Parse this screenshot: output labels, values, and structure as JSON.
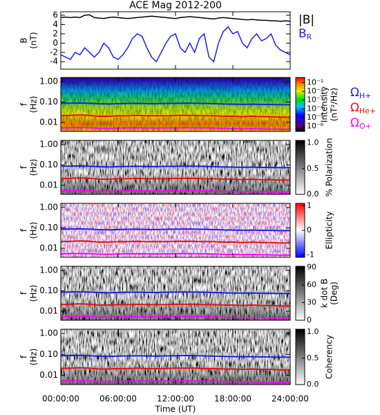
{
  "chart_data": {
    "title": "ACE Mag 2012-200",
    "xlabel": "Time (UT)",
    "xlim": [
      0,
      24
    ],
    "xticks": [
      {
        "value": 0,
        "label": "00:00:00"
      },
      {
        "value": 6,
        "label": "06:00:00"
      },
      {
        "value": 12,
        "label": "12:00:00"
      },
      {
        "value": 18,
        "label": "18:00:00"
      },
      {
        "value": 24,
        "label": "24:00:00"
      }
    ],
    "gyro": {
      "x": [
        0,
        1,
        2,
        3,
        4,
        5,
        6,
        7,
        8,
        9,
        10,
        11,
        12,
        13,
        14,
        15,
        16,
        17,
        18,
        19,
        20,
        21,
        22,
        23,
        24
      ],
      "series": [
        {
          "name": "Ω",
          "subscript": "H+",
          "color": "#1c1cf0",
          "values": [
            0.085,
            0.088,
            0.09,
            0.087,
            0.082,
            0.08,
            0.083,
            0.085,
            0.086,
            0.084,
            0.083,
            0.085,
            0.086,
            0.088,
            0.087,
            0.085,
            0.083,
            0.08,
            0.078,
            0.077,
            0.078,
            0.076,
            0.075,
            0.074,
            0.074
          ]
        },
        {
          "name": "Ω",
          "subscript": "He+",
          "color": "#e81010",
          "values": [
            0.021,
            0.022,
            0.023,
            0.022,
            0.02,
            0.02,
            0.021,
            0.021,
            0.022,
            0.021,
            0.021,
            0.021,
            0.022,
            0.022,
            0.022,
            0.021,
            0.021,
            0.02,
            0.02,
            0.019,
            0.02,
            0.019,
            0.019,
            0.018,
            0.018
          ]
        },
        {
          "name": "Ω",
          "subscript": "O+",
          "color": "#ff00ff",
          "values": [
            0.0053,
            0.0055,
            0.0056,
            0.0054,
            0.0051,
            0.005,
            0.0052,
            0.0053,
            0.0054,
            0.0053,
            0.0052,
            0.0053,
            0.0054,
            0.0055,
            0.0054,
            0.0053,
            0.0052,
            0.005,
            0.0049,
            0.0048,
            0.0049,
            0.0048,
            0.0047,
            0.0046,
            0.0046
          ]
        }
      ]
    },
    "panels": [
      {
        "type": "line",
        "ylabel": [
          "B",
          "(nT)"
        ],
        "ylim": [
          -5.6,
          6.75
        ],
        "yticks": [
          -4,
          -2,
          0,
          2,
          4,
          6
        ],
        "x": [
          0,
          0.5,
          1,
          1.5,
          2,
          2.5,
          3,
          3.5,
          4,
          4.5,
          5,
          5.5,
          6,
          6.5,
          7,
          7.5,
          8,
          8.5,
          9,
          9.5,
          10,
          10.5,
          11,
          11.5,
          12,
          12.5,
          13,
          13.5,
          14,
          14.5,
          15,
          15.5,
          16,
          16.5,
          17,
          17.5,
          18,
          18.5,
          19,
          19.5,
          20,
          20.5,
          21,
          21.5,
          22,
          22.5,
          23,
          23.5,
          24
        ],
        "series": [
          {
            "name": "|B|",
            "color": "#000000",
            "values": [
              5.5,
              5.6,
              5.5,
              5.6,
              5.5,
              6.0,
              6.1,
              5.5,
              5.4,
              5.3,
              5.5,
              5.6,
              5.5,
              5.4,
              5.3,
              5.4,
              5.5,
              5.6,
              5.7,
              5.8,
              5.7,
              5.6,
              5.5,
              5.4,
              5.3,
              5.5,
              5.6,
              5.7,
              5.6,
              5.5,
              5.4,
              5.3,
              5.2,
              5.4,
              5.5,
              5.4,
              5.3,
              5.2,
              5.1,
              5.0,
              5.1,
              5.0,
              4.9,
              4.9,
              4.8,
              4.8,
              4.7,
              4.8,
              4.7
            ]
          },
          {
            "name": "B",
            "subscript": "R",
            "color": "#1c1cf0",
            "values": [
              -2.5,
              -3,
              -3.5,
              -2,
              -2.5,
              -1,
              -2,
              -3,
              -2,
              0,
              -1,
              -3,
              -3.5,
              -2.5,
              -1,
              1,
              2,
              1.5,
              -1,
              -3,
              -4,
              -2,
              0,
              1.5,
              2,
              -1,
              -2,
              0,
              -2,
              1,
              2,
              -3,
              -4,
              0,
              2.5,
              3.5,
              2,
              2.5,
              0,
              -1,
              1,
              2,
              0.5,
              1,
              2,
              -0.5,
              -1.5,
              -2,
              -2.5
            ]
          }
        ]
      },
      {
        "type": "spectrogram",
        "ylabel": [
          "f",
          "(Hz)"
        ],
        "log": true,
        "ylim": [
          0.0036,
          1.6
        ],
        "yticks": [
          {
            "value": 1,
            "label": "1.00"
          },
          {
            "value": 0.1,
            "label": "0.10"
          },
          {
            "value": 0.01,
            "label": "0.01"
          }
        ],
        "colormap": "rainbow",
        "clabel": [
          "Intensity",
          "(nT²/Hz)"
        ],
        "clog": true,
        "clim": [
          2.5e-07,
          0.4
        ],
        "cticks": [
          {
            "value": 0.1,
            "label": "10⁻¹"
          },
          {
            "value": 0.01,
            "label": "10⁻²"
          },
          {
            "value": 0.001,
            "label": "10⁻³"
          },
          {
            "value": 0.0001,
            "label": "10⁻⁴"
          },
          {
            "value": 1e-05,
            "label": "10⁻⁵"
          },
          {
            "value": 1e-06,
            "label": "10⁻⁶"
          }
        ],
        "legend": true
      },
      {
        "type": "spectrogram",
        "ylabel": [
          "f",
          "(Hz)"
        ],
        "log": true,
        "ylim": [
          0.0036,
          1.6
        ],
        "yticks": [
          {
            "value": 1,
            "label": "1.00"
          },
          {
            "value": 0.1,
            "label": "0.10"
          },
          {
            "value": 0.01,
            "label": "0.01"
          }
        ],
        "colormap": "gray",
        "clabel": [
          "% Polarization"
        ],
        "clim": [
          0,
          1.05
        ],
        "cticks": [
          {
            "value": 1,
            "label": "1.0"
          },
          {
            "value": 0.5,
            "label": "0.5"
          },
          {
            "value": 0,
            "label": "0.0"
          }
        ]
      },
      {
        "type": "spectrogram",
        "ylabel": [
          "f",
          "(Hz)"
        ],
        "log": true,
        "ylim": [
          0.0036,
          1.6
        ],
        "yticks": [
          {
            "value": 1,
            "label": "1.00"
          },
          {
            "value": 0.1,
            "label": "0.10"
          },
          {
            "value": 0.01,
            "label": "0.01"
          }
        ],
        "colormap": "bwr",
        "clabel": [
          "Ellipticity"
        ],
        "clim": [
          -1.1,
          1.1
        ],
        "cticks": [
          1,
          0,
          -1
        ]
      },
      {
        "type": "spectrogram",
        "ylabel": [
          "f",
          "(Hz)"
        ],
        "log": true,
        "ylim": [
          0.0036,
          1.6
        ],
        "yticks": [
          {
            "value": 1,
            "label": "1.00"
          },
          {
            "value": 0.1,
            "label": "0.10"
          },
          {
            "value": 0.01,
            "label": "0.01"
          }
        ],
        "colormap": "gray",
        "clabel": [
          "k dot B",
          "(Deg)"
        ],
        "clim": [
          0,
          92
        ],
        "cticks": [
          90,
          60,
          30,
          0
        ]
      },
      {
        "type": "spectrogram",
        "ylabel": [
          "f",
          "(Hz)"
        ],
        "log": true,
        "ylim": [
          0.0036,
          1.6
        ],
        "yticks": [
          {
            "value": 1,
            "label": "1.00"
          },
          {
            "value": 0.1,
            "label": "0.10"
          },
          {
            "value": 0.01,
            "label": "0.01"
          }
        ],
        "colormap": "gray",
        "clabel": [
          "Coherency"
        ],
        "clim": [
          0,
          1.05
        ],
        "cticks": [
          {
            "value": 1,
            "label": "1.0"
          },
          {
            "value": 0.5,
            "label": "0.5"
          },
          {
            "value": 0,
            "label": "0.0"
          }
        ]
      }
    ]
  }
}
